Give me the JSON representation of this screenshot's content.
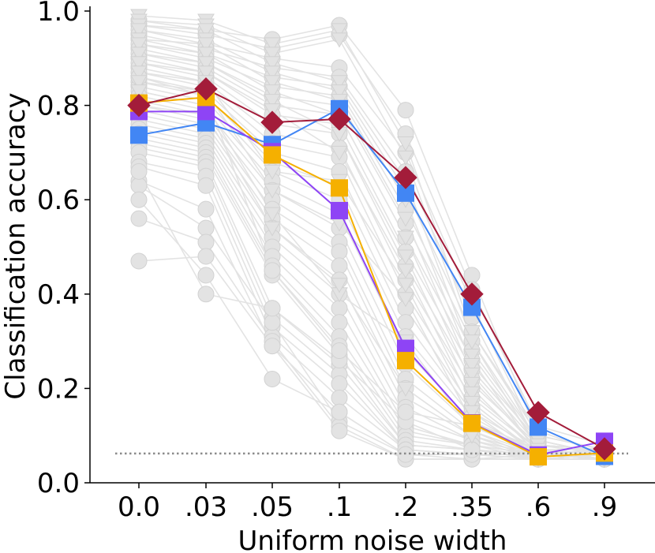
{
  "chart_data": {
    "type": "line",
    "xlabel": "Uniform noise width",
    "ylabel": "Classification accuracy",
    "categories": [
      "0.0",
      ".03",
      ".05",
      ".1",
      ".2",
      ".35",
      ".6",
      ".9"
    ],
    "yticks": [
      "0.0",
      "0.2",
      "0.4",
      "0.6",
      "0.8",
      "1.0"
    ],
    "ylim": [
      0.0,
      1.0
    ],
    "chance_level": 0.062,
    "background_series": {
      "color": "#e3e3e3",
      "description_markers": "circle",
      "series": [
        {
          "marker": "circle",
          "values": [
            0.98,
            0.96,
            0.94,
            0.97,
            0.79,
            0.44,
            0.1,
            0.07
          ]
        },
        {
          "marker": "circle",
          "values": [
            0.97,
            0.95,
            0.92,
            0.95,
            0.74,
            0.41,
            0.12,
            0.08
          ]
        },
        {
          "marker": "circle",
          "values": [
            0.96,
            0.93,
            0.9,
            0.88,
            0.7,
            0.38,
            0.09,
            0.06
          ]
        },
        {
          "marker": "circle",
          "values": [
            0.95,
            0.92,
            0.88,
            0.86,
            0.66,
            0.35,
            0.08,
            0.07
          ]
        },
        {
          "marker": "circle",
          "values": [
            0.94,
            0.91,
            0.86,
            0.84,
            0.62,
            0.32,
            0.11,
            0.06
          ]
        },
        {
          "marker": "circle",
          "values": [
            0.93,
            0.9,
            0.84,
            0.82,
            0.58,
            0.3,
            0.07,
            0.05
          ]
        },
        {
          "marker": "circle",
          "values": [
            0.92,
            0.89,
            0.82,
            0.8,
            0.55,
            0.28,
            0.09,
            0.06
          ]
        },
        {
          "marker": "circle",
          "values": [
            0.91,
            0.88,
            0.8,
            0.78,
            0.52,
            0.26,
            0.06,
            0.07
          ]
        },
        {
          "marker": "circle",
          "values": [
            0.9,
            0.87,
            0.78,
            0.76,
            0.49,
            0.24,
            0.08,
            0.06
          ]
        },
        {
          "marker": "circle",
          "values": [
            0.89,
            0.86,
            0.76,
            0.74,
            0.46,
            0.22,
            0.07,
            0.05
          ]
        },
        {
          "marker": "circle",
          "values": [
            0.88,
            0.85,
            0.74,
            0.71,
            0.43,
            0.2,
            0.06,
            0.06
          ]
        },
        {
          "marker": "circle",
          "values": [
            0.87,
            0.84,
            0.72,
            0.69,
            0.4,
            0.18,
            0.07,
            0.07
          ]
        },
        {
          "marker": "circle",
          "values": [
            0.86,
            0.83,
            0.7,
            0.66,
            0.37,
            0.16,
            0.06,
            0.06
          ]
        },
        {
          "marker": "circle",
          "values": [
            0.85,
            0.82,
            0.68,
            0.63,
            0.34,
            0.15,
            0.05,
            0.05
          ]
        },
        {
          "marker": "circle",
          "values": [
            0.84,
            0.81,
            0.66,
            0.6,
            0.31,
            0.14,
            0.06,
            0.06
          ]
        },
        {
          "marker": "circle",
          "values": [
            0.83,
            0.8,
            0.64,
            0.57,
            0.28,
            0.13,
            0.07,
            0.07
          ]
        },
        {
          "marker": "circle",
          "values": [
            0.82,
            0.79,
            0.62,
            0.54,
            0.25,
            0.12,
            0.06,
            0.05
          ]
        },
        {
          "marker": "circle",
          "values": [
            0.81,
            0.78,
            0.6,
            0.51,
            0.22,
            0.11,
            0.05,
            0.06
          ]
        },
        {
          "marker": "circle",
          "values": [
            0.8,
            0.77,
            0.58,
            0.49,
            0.2,
            0.1,
            0.06,
            0.06
          ]
        },
        {
          "marker": "circle",
          "values": [
            0.79,
            0.76,
            0.56,
            0.46,
            0.18,
            0.1,
            0.05,
            0.05
          ]
        },
        {
          "marker": "circle",
          "values": [
            0.78,
            0.75,
            0.54,
            0.43,
            0.16,
            0.09,
            0.06,
            0.06
          ]
        },
        {
          "marker": "circle",
          "values": [
            0.77,
            0.74,
            0.52,
            0.4,
            0.14,
            0.09,
            0.05,
            0.06
          ]
        },
        {
          "marker": "circle",
          "values": [
            0.76,
            0.73,
            0.5,
            0.37,
            0.12,
            0.08,
            0.06,
            0.05
          ]
        },
        {
          "marker": "circle",
          "values": [
            0.75,
            0.72,
            0.48,
            0.34,
            0.11,
            0.08,
            0.05,
            0.06
          ]
        },
        {
          "marker": "circle",
          "values": [
            0.74,
            0.71,
            0.46,
            0.31,
            0.1,
            0.08,
            0.06,
            0.05
          ]
        },
        {
          "marker": "circle",
          "values": [
            0.73,
            0.7,
            0.45,
            0.29,
            0.09,
            0.07,
            0.05,
            0.06
          ]
        },
        {
          "marker": "circle",
          "values": [
            0.72,
            0.69,
            0.44,
            0.27,
            0.08,
            0.07,
            0.06,
            0.05
          ]
        },
        {
          "marker": "circle",
          "values": [
            0.71,
            0.68,
            0.37,
            0.25,
            0.08,
            0.07,
            0.05,
            0.06
          ]
        },
        {
          "marker": "circle",
          "values": [
            0.7,
            0.67,
            0.35,
            0.23,
            0.07,
            0.06,
            0.06,
            0.05
          ]
        },
        {
          "marker": "circle",
          "values": [
            0.68,
            0.65,
            0.33,
            0.21,
            0.07,
            0.06,
            0.05,
            0.05
          ]
        },
        {
          "marker": "circle",
          "values": [
            0.67,
            0.63,
            0.31,
            0.18,
            0.07,
            0.06,
            0.06,
            0.06
          ]
        },
        {
          "marker": "circle",
          "values": [
            0.64,
            0.58,
            0.29,
            0.15,
            0.06,
            0.06,
            0.05,
            0.05
          ]
        },
        {
          "marker": "circle",
          "values": [
            0.63,
            0.54,
            0.34,
            0.13,
            0.06,
            0.05,
            0.05,
            0.06
          ]
        },
        {
          "marker": "circle",
          "values": [
            0.56,
            0.51,
            0.3,
            0.12,
            0.05,
            0.05,
            0.06,
            0.05
          ]
        },
        {
          "marker": "circle",
          "values": [
            0.47,
            0.48,
            0.29,
            0.11,
            0.05,
            0.05,
            0.05,
            0.05
          ]
        },
        {
          "marker": "circle",
          "values": [
            0.6,
            0.44,
            0.22,
            0.15,
            0.06,
            0.06,
            0.06,
            0.06
          ]
        },
        {
          "marker": "circle",
          "values": [
            0.66,
            0.4,
            0.37,
            0.26,
            0.13,
            0.07,
            0.06,
            0.06
          ]
        },
        {
          "marker": "circle",
          "values": [
            0.86,
            0.82,
            0.45,
            0.28,
            0.15,
            0.12,
            0.07,
            0.06
          ]
        },
        {
          "marker": "triangle",
          "values": [
            0.99,
            0.98,
            0.93,
            0.96,
            0.72,
            0.32,
            0.1,
            0.07
          ]
        },
        {
          "marker": "triangle",
          "values": [
            0.98,
            0.97,
            0.91,
            0.94,
            0.69,
            0.3,
            0.09,
            0.06
          ]
        },
        {
          "marker": "triangle",
          "values": [
            0.97,
            0.96,
            0.89,
            0.85,
            0.64,
            0.27,
            0.08,
            0.07
          ]
        },
        {
          "marker": "triangle",
          "values": [
            0.96,
            0.94,
            0.87,
            0.83,
            0.6,
            0.25,
            0.09,
            0.06
          ]
        },
        {
          "marker": "triangle",
          "values": [
            0.94,
            0.93,
            0.85,
            0.81,
            0.56,
            0.23,
            0.07,
            0.06
          ]
        },
        {
          "marker": "triangle",
          "values": [
            0.93,
            0.91,
            0.83,
            0.78,
            0.52,
            0.21,
            0.08,
            0.07
          ]
        },
        {
          "marker": "triangle",
          "values": [
            0.91,
            0.89,
            0.81,
            0.74,
            0.48,
            0.19,
            0.07,
            0.06
          ]
        },
        {
          "marker": "triangle",
          "values": [
            0.89,
            0.87,
            0.79,
            0.7,
            0.45,
            0.17,
            0.06,
            0.06
          ]
        },
        {
          "marker": "triangle",
          "values": [
            0.87,
            0.85,
            0.66,
            0.64,
            0.42,
            0.15,
            0.07,
            0.05
          ]
        },
        {
          "marker": "triangle",
          "values": [
            0.85,
            0.83,
            0.62,
            0.55,
            0.39,
            0.13,
            0.06,
            0.06
          ]
        },
        {
          "marker": "triangle",
          "values": [
            0.83,
            0.8,
            0.57,
            0.4,
            0.3,
            0.11,
            0.06,
            0.05
          ]
        },
        {
          "marker": "triangle",
          "values": [
            0.8,
            0.78,
            0.54,
            0.42,
            0.2,
            0.1,
            0.05,
            0.06
          ]
        }
      ]
    },
    "series": [
      {
        "name": "blue",
        "color": "#4286f4",
        "marker": "square",
        "values": [
          0.737,
          0.763,
          0.717,
          0.793,
          0.614,
          0.372,
          0.118,
          0.056
        ]
      },
      {
        "name": "purple",
        "color": "#8e44f5",
        "marker": "square",
        "values": [
          0.787,
          0.787,
          0.702,
          0.577,
          0.285,
          0.127,
          0.059,
          0.088
        ]
      },
      {
        "name": "orange",
        "color": "#f5b000",
        "marker": "square",
        "values": [
          0.805,
          0.817,
          0.695,
          0.625,
          0.259,
          0.126,
          0.055,
          0.063
        ]
      },
      {
        "name": "crimson",
        "color": "#a31c3a",
        "marker": "diamond",
        "values": [
          0.8,
          0.835,
          0.764,
          0.771,
          0.647,
          0.4,
          0.149,
          0.072
        ]
      }
    ]
  }
}
